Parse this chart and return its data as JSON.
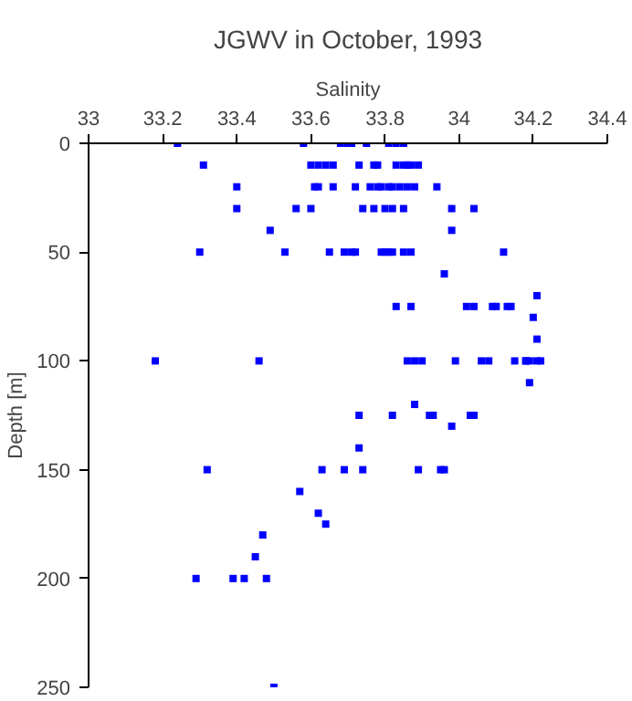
{
  "chart_data": {
    "type": "scatter",
    "title": "JGWV in October, 1993",
    "xlabel": "Salinity",
    "ylabel": "Depth [m]",
    "xlim": [
      33,
      34.4
    ],
    "xticks": [
      33,
      33.2,
      33.4,
      33.6,
      33.8,
      34,
      34.2,
      34.4
    ],
    "ylim": [
      250,
      0
    ],
    "yticks": [
      0,
      50,
      100,
      150,
      200,
      250
    ],
    "grid": false,
    "marker": "square",
    "series": [
      {
        "color": "#0000ff",
        "x": [
          33.24,
          33.58,
          33.68,
          33.7,
          33.71,
          33.75,
          33.81,
          33.83,
          33.85,
          33.31,
          33.6,
          33.62,
          33.64,
          33.66,
          33.73,
          33.77,
          33.78,
          33.83,
          33.85,
          33.86,
          33.87,
          33.89,
          33.4,
          33.61,
          33.62,
          33.66,
          33.72,
          33.76,
          33.78,
          33.79,
          33.81,
          33.82,
          33.84,
          33.86,
          33.88,
          33.94,
          33.4,
          33.56,
          33.6,
          33.74,
          33.77,
          33.8,
          33.82,
          33.85,
          33.98,
          34.04,
          33.49,
          33.98,
          33.3,
          33.53,
          33.65,
          33.69,
          33.71,
          33.72,
          33.79,
          33.8,
          33.81,
          33.82,
          33.85,
          33.87,
          34.12,
          33.96,
          34.21,
          33.83,
          33.87,
          34.02,
          34.04,
          34.09,
          34.1,
          34.13,
          34.14,
          34.2,
          34.21,
          33.18,
          33.46,
          33.86,
          33.88,
          33.9,
          33.99,
          34.06,
          34.08,
          34.15,
          34.18,
          34.18,
          34.19,
          34.21,
          34.22,
          34.19,
          33.88,
          33.73,
          33.82,
          33.92,
          33.93,
          34.03,
          34.04,
          33.98,
          33.73,
          33.32,
          33.63,
          33.69,
          33.74,
          33.89,
          33.95,
          33.96,
          33.57,
          33.62,
          33.64,
          33.47,
          33.45,
          33.29,
          33.39,
          33.42,
          33.48,
          33.5
        ],
        "values": [
          0,
          0,
          0,
          0,
          0,
          0,
          0,
          0,
          0,
          10,
          10,
          10,
          10,
          10,
          10,
          10,
          10,
          10,
          10,
          10,
          10,
          10,
          20,
          20,
          20,
          20,
          20,
          20,
          20,
          20,
          20,
          20,
          20,
          20,
          20,
          20,
          30,
          30,
          30,
          30,
          30,
          30,
          30,
          30,
          30,
          30,
          40,
          40,
          50,
          50,
          50,
          50,
          50,
          50,
          50,
          50,
          50,
          50,
          50,
          50,
          50,
          60,
          70,
          75,
          75,
          75,
          75,
          75,
          75,
          75,
          75,
          80,
          90,
          100,
          100,
          100,
          100,
          100,
          100,
          100,
          100,
          100,
          100,
          100,
          100,
          100,
          100,
          110,
          120,
          125,
          125,
          125,
          125,
          125,
          125,
          130,
          140,
          150,
          150,
          150,
          150,
          150,
          150,
          150,
          160,
          170,
          175,
          180,
          190,
          200,
          200,
          200,
          200,
          250
        ]
      }
    ]
  }
}
